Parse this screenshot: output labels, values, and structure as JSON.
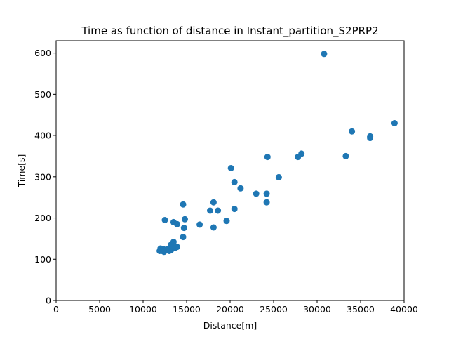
{
  "chart_data": {
    "type": "scatter",
    "title": "Time as function of distance in Instant_partition_S2PRP2",
    "xlabel": "Distance[m]",
    "ylabel": "Time[s]",
    "xlim": [
      0,
      40000
    ],
    "ylim": [
      0,
      630
    ],
    "xticks": [
      0,
      5000,
      10000,
      15000,
      20000,
      25000,
      30000,
      35000,
      40000
    ],
    "yticks": [
      0,
      100,
      200,
      300,
      400,
      500,
      600
    ],
    "grid": false,
    "marker_color": "#1f77b4",
    "x": [
      30800,
      38900,
      34000,
      36100,
      36100,
      28200,
      27800,
      33300,
      24300,
      20100,
      25600,
      20500,
      21200,
      23000,
      24200,
      24200,
      18100,
      20500,
      17700,
      18600,
      14600,
      12500,
      14800,
      13500,
      13900,
      19600,
      14700,
      16500,
      18100,
      14600,
      13500,
      13200,
      13900,
      13700,
      12000,
      12300,
      12500,
      12800,
      13200,
      13000,
      11900,
      12400,
      12200
    ],
    "y": [
      598,
      430,
      410,
      398,
      394,
      356,
      348,
      350,
      348,
      321,
      299,
      287,
      272,
      259,
      259,
      238,
      238,
      222,
      218,
      218,
      233,
      195,
      197,
      190,
      185,
      193,
      176,
      184,
      177,
      154,
      142,
      135,
      130,
      128,
      126,
      125,
      122,
      124,
      122,
      120,
      120,
      118,
      120
    ]
  }
}
